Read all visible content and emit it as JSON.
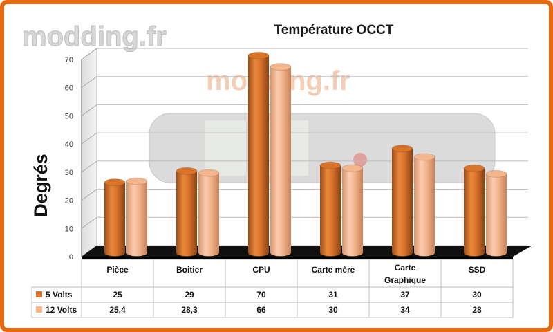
{
  "watermark": {
    "text": "modding.fr"
  },
  "colors": {
    "series1": "#d8732a",
    "series2": "#f4b48c",
    "frame": "#e8680f",
    "floor": "#111111"
  },
  "chart_data": {
    "type": "bar",
    "title": "Température OCCT",
    "ylabel": "Degrés",
    "xlabel": "",
    "ylim": [
      0,
      70
    ],
    "yticks": [
      0,
      10,
      20,
      30,
      40,
      50,
      60,
      70
    ],
    "grid": true,
    "categories": [
      "Pièce",
      "Boitier",
      "CPU",
      "Carte mère",
      "Carte Graphique",
      "SSD"
    ],
    "series": [
      {
        "name": "5 Volts",
        "values": [
          25,
          29,
          70,
          31,
          37,
          30
        ],
        "labels": [
          "25",
          "29",
          "70",
          "31",
          "37",
          "30"
        ]
      },
      {
        "name": "12 Volts",
        "values": [
          25.4,
          28.3,
          66,
          30,
          34,
          28
        ],
        "labels": [
          "25,4",
          "28,3",
          "66",
          "30",
          "34",
          "28"
        ]
      }
    ]
  }
}
